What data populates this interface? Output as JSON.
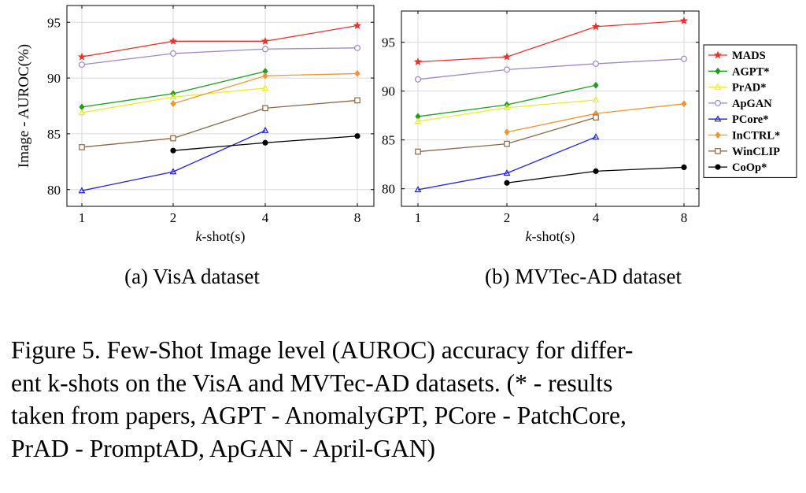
{
  "figure": {
    "caption_lines": [
      "Figure 5. Few-Shot Image level (AUROC) accuracy for differ-",
      "ent k-shots on the VisA and MVTec-AD datasets. (* - results",
      "taken from papers, AGPT - AnomalyGPT, PCore - PatchCore,",
      "PrAD - PromptAD, ApGAN - April-GAN)"
    ]
  },
  "chart_data": [
    {
      "type": "line",
      "subtitle": "(a) VisA dataset",
      "xlabel_italic": "k",
      "xlabel_rest": "-shot(s)",
      "ylabel": "Image - AUROC(%)",
      "x": [
        "1",
        "2",
        "4",
        "8"
      ],
      "ylim": [
        78.5,
        96.5
      ],
      "yticks": [
        "80",
        "85",
        "90",
        "95"
      ],
      "grid": true,
      "series": [
        {
          "name": "MADS",
          "color": "#e8322e",
          "marker": "star",
          "values": [
            91.9,
            93.3,
            93.3,
            94.7
          ]
        },
        {
          "name": "AGPT*",
          "color": "#1f9d1f",
          "marker": "diamond",
          "values": [
            87.4,
            88.6,
            90.6,
            null
          ]
        },
        {
          "name": "PrAD*",
          "color": "#ecec2a",
          "marker": "tri",
          "values": [
            86.9,
            88.3,
            89.1,
            null
          ]
        },
        {
          "name": "ApGAN",
          "color": "#9d86c6",
          "marker": "circle-open",
          "values": [
            91.2,
            92.2,
            92.6,
            92.7
          ]
        },
        {
          "name": "PCore*",
          "color": "#1f1fd6",
          "marker": "tri",
          "values": [
            79.9,
            81.6,
            85.3,
            null
          ]
        },
        {
          "name": "InCTRL*",
          "color": "#f0962e",
          "marker": "diamond",
          "values": [
            null,
            87.7,
            90.2,
            90.4
          ]
        },
        {
          "name": "WinCLIP",
          "color": "#8b6745",
          "marker": "square-open",
          "values": [
            83.8,
            84.6,
            87.3,
            88.0
          ]
        },
        {
          "name": "CoOp*",
          "color": "#000000",
          "marker": "circle",
          "values": [
            null,
            83.5,
            84.2,
            84.8
          ]
        }
      ]
    },
    {
      "type": "line",
      "subtitle": "(b) MVTec-AD dataset",
      "xlabel_italic": "k",
      "xlabel_rest": "-shot(s)",
      "x": [
        "1",
        "2",
        "4",
        "8"
      ],
      "ylim": [
        78.2,
        98.2
      ],
      "yticks": [
        "80",
        "85",
        "90",
        "95"
      ],
      "grid": true,
      "legend": "right",
      "series": [
        {
          "name": "MADS",
          "color": "#e8322e",
          "marker": "star",
          "values": [
            93.0,
            93.5,
            96.6,
            97.2
          ]
        },
        {
          "name": "AGPT*",
          "color": "#1f9d1f",
          "marker": "diamond",
          "values": [
            87.4,
            88.6,
            90.6,
            null
          ]
        },
        {
          "name": "PrAD*",
          "color": "#ecec2a",
          "marker": "tri",
          "values": [
            86.9,
            88.3,
            89.1,
            null
          ]
        },
        {
          "name": "ApGAN",
          "color": "#9d86c6",
          "marker": "circle-open",
          "values": [
            91.2,
            92.2,
            92.8,
            93.3
          ]
        },
        {
          "name": "PCore*",
          "color": "#1f1fd6",
          "marker": "tri",
          "values": [
            79.9,
            81.6,
            85.3,
            null
          ]
        },
        {
          "name": "InCTRL*",
          "color": "#f0962e",
          "marker": "diamond",
          "values": [
            null,
            85.8,
            87.7,
            88.7
          ]
        },
        {
          "name": "WinCLIP",
          "color": "#8b6745",
          "marker": "square-open",
          "values": [
            83.8,
            84.6,
            87.3,
            null
          ]
        },
        {
          "name": "CoOp*",
          "color": "#000000",
          "marker": "circle",
          "values": [
            null,
            80.6,
            81.8,
            82.2
          ]
        }
      ]
    }
  ]
}
